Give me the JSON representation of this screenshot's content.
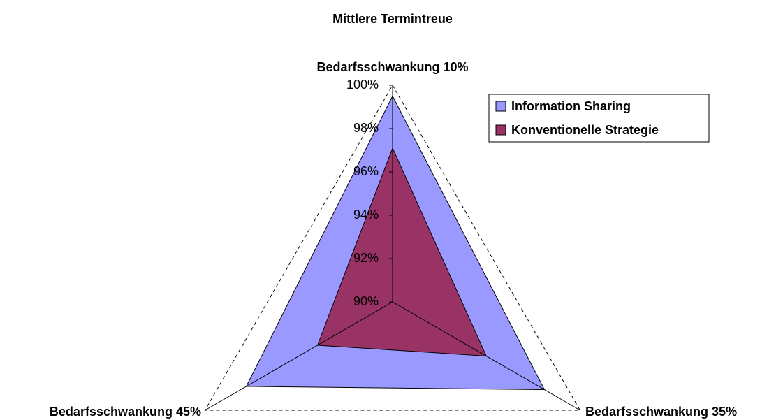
{
  "chart_data": {
    "type": "radar",
    "title": "Mittlere Termintreue",
    "categories": [
      "Bedarfsschwankung 10%",
      "Bedarfsschwankung 35%",
      "Bedarfsschwankung 45%"
    ],
    "series": [
      {
        "name": "Information Sharing",
        "color": "#9999ff",
        "values": [
          99.5,
          98.1,
          97.8
        ]
      },
      {
        "name": "Konventionelle Strategie",
        "color": "#993366",
        "values": [
          97.1,
          95.0,
          94.0
        ]
      }
    ],
    "ylim": [
      90,
      100
    ],
    "yticks": [
      {
        "value": 90,
        "label": "90%"
      },
      {
        "value": 92,
        "label": "92%"
      },
      {
        "value": 94,
        "label": "94%"
      },
      {
        "value": 96,
        "label": "96%"
      },
      {
        "value": 98,
        "label": "98%"
      },
      {
        "value": 100,
        "label": "100%"
      }
    ],
    "legend": "top-right"
  }
}
